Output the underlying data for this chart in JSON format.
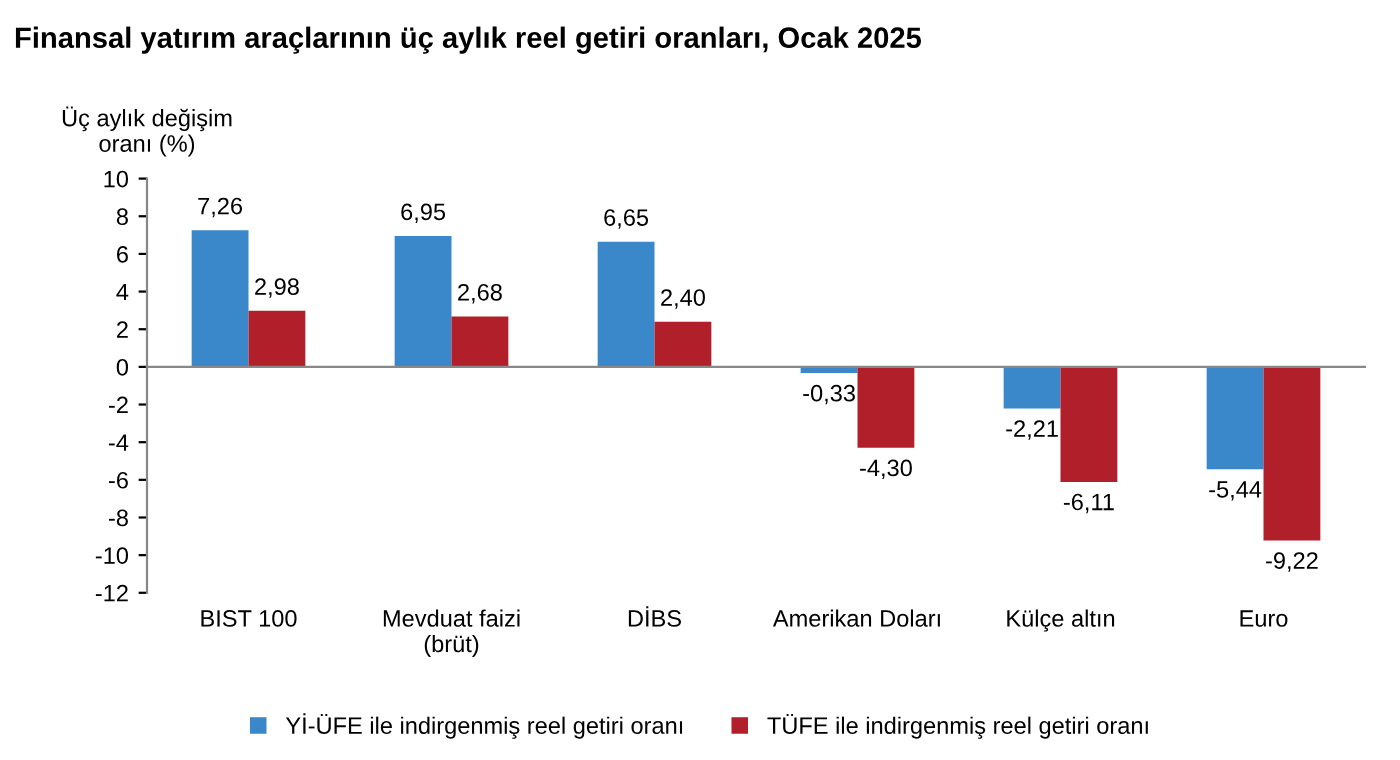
{
  "chart_data": {
    "type": "bar",
    "title": "Finansal yatırım araçlarının üç aylık reel getiri oranları, Ocak 2025",
    "ylabel": "Üç aylık değişim\noranı (%)",
    "categories": [
      "BIST 100",
      "Mevduat faizi\n(brüt)",
      "DİBS",
      "Amerikan Doları",
      "Külçe altın",
      "Euro"
    ],
    "series": [
      {
        "name": "Yİ-ÜFE ile indirgenmiş reel getiri oranı",
        "color": "#3a87c9",
        "values": [
          7.26,
          6.95,
          6.65,
          -0.33,
          -2.21,
          -5.44
        ],
        "value_labels": [
          "7,26",
          "6,95",
          "6,65",
          "-0,33",
          "-2,21",
          "-5,44"
        ]
      },
      {
        "name": "TÜFE ile indirgenmiş reel getiri oranı",
        "color": "#b01f2a",
        "values": [
          2.98,
          2.68,
          2.4,
          -4.3,
          -6.11,
          -9.22
        ],
        "value_labels": [
          "2,98",
          "2,68",
          "2,40",
          "-4,30",
          "-6,11",
          "-9,22"
        ]
      }
    ],
    "ylim": [
      -12,
      10
    ],
    "yticks": [
      -12,
      -10,
      -8,
      -6,
      -4,
      -2,
      0,
      2,
      4,
      6,
      8,
      10
    ],
    "legend": "bottom"
  }
}
